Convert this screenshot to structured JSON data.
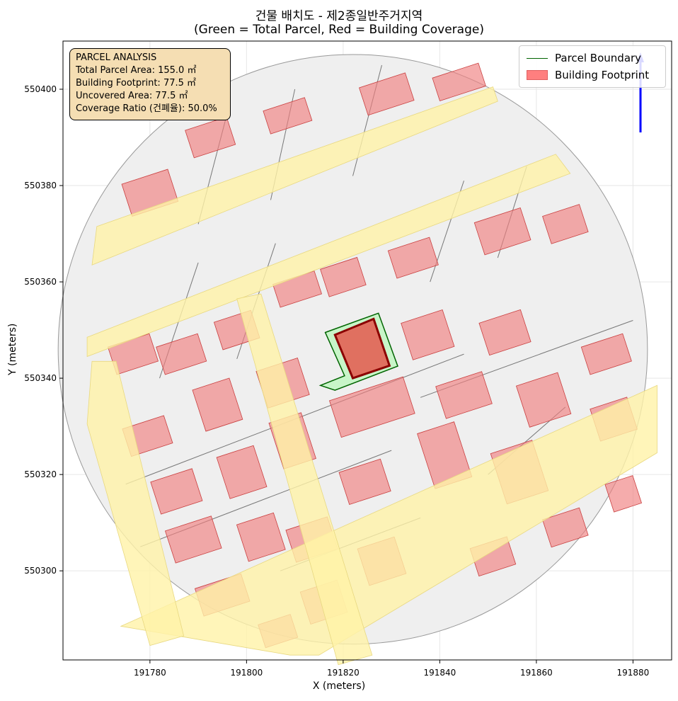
{
  "chart_data": {
    "type": "map",
    "title": "건물 배치도 - 제2종일반주거지역",
    "subtitle": "(Green = Total Parcel, Red = Building Coverage)",
    "xlabel": "X (meters)",
    "ylabel": "Y (meters)",
    "xlim": [
      191762,
      191888
    ],
    "ylim": [
      550281.5,
      550410
    ],
    "x_ticks": [
      191780,
      191800,
      191820,
      191840,
      191860,
      191880
    ],
    "y_ticks": [
      550300,
      550320,
      550340,
      550360,
      550380,
      550400
    ],
    "grid": true,
    "legend_position": "top-right",
    "legend": [
      "Parcel Boundary",
      "Building Footprint"
    ],
    "colors": {
      "parcel_edge": "#006400",
      "parcel_fill": "#c8f5c8",
      "building_fill": "#ff7f7f",
      "building_edge": "#8b0000",
      "road": "#fff2a8",
      "context_parcel": "#efefef",
      "north_arrow": "#0000ff"
    },
    "subject_parcel": [
      [
        191816.3,
        550349.5
      ],
      [
        191827.3,
        550353.5
      ],
      [
        191831.3,
        550342.5
      ],
      [
        191818.3,
        550337.5
      ],
      [
        191815.3,
        550338.5
      ],
      [
        191820.3,
        550340.5
      ]
    ],
    "subject_building": [
      [
        191818.3,
        550349.0
      ],
      [
        191826.3,
        550352.3
      ],
      [
        191829.6,
        550342.6
      ],
      [
        191822.0,
        550340.0
      ]
    ],
    "road_1": [
      [
        191769,
        550371.5
      ],
      [
        191851,
        550400.5
      ],
      [
        191852,
        550397.5
      ],
      [
        191768,
        550363.5
      ]
    ],
    "road_2": [
      [
        191767,
        550348.5
      ],
      [
        191864,
        550386.5
      ],
      [
        191867,
        550382.5
      ],
      [
        191767,
        550344.5
      ]
    ],
    "road_3": [
      [
        191774,
        550288.5
      ],
      [
        191885,
        550338.5
      ],
      [
        191885,
        550324.5
      ],
      [
        191815,
        550282.5
      ],
      [
        191809,
        550282.5
      ]
    ],
    "road_vertical_1": [
      [
        191768,
        550343.5
      ],
      [
        191773,
        550343.5
      ],
      [
        191787,
        550286.5
      ],
      [
        191780,
        550284.5
      ],
      [
        191767,
        550330.5
      ]
    ],
    "road_vertical_2": [
      [
        191798,
        550356.5
      ],
      [
        191803,
        550357.5
      ],
      [
        191826,
        550282.5
      ],
      [
        191819,
        550280.5
      ]
    ]
  },
  "info_box": {
    "heading": "PARCEL ANALYSIS",
    "total_area": "Total Parcel Area: 155.0 ㎡",
    "footprint": "Building Footprint: 77.5 ㎡",
    "uncovered": "Uncovered Area: 77.5 ㎡",
    "coverage": "Coverage Ratio (건폐율): 50.0%"
  }
}
